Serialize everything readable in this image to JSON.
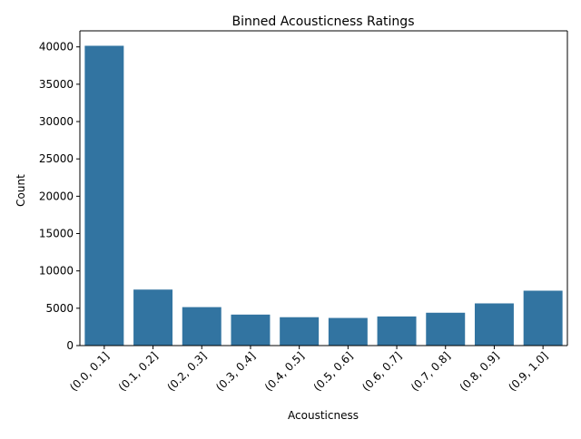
{
  "chart_data": {
    "type": "bar",
    "title": "Binned Acousticness Ratings",
    "xlabel": "Acousticness",
    "ylabel": "Count",
    "categories": [
      "(0.0, 0.1]",
      "(0.1, 0.2]",
      "(0.2, 0.3]",
      "(0.3, 0.4]",
      "(0.4, 0.5]",
      "(0.5, 0.6]",
      "(0.6, 0.7]",
      "(0.7, 0.8]",
      "(0.8, 0.9]",
      "(0.9, 1.0]"
    ],
    "values": [
      40150,
      7500,
      5150,
      4150,
      3800,
      3700,
      3900,
      4400,
      5650,
      7350
    ],
    "ylim": [
      0,
      42150
    ],
    "yticks": [
      0,
      5000,
      10000,
      15000,
      20000,
      25000,
      30000,
      35000,
      40000
    ],
    "bar_color": "#3274a1",
    "grid": false,
    "legend": false
  }
}
